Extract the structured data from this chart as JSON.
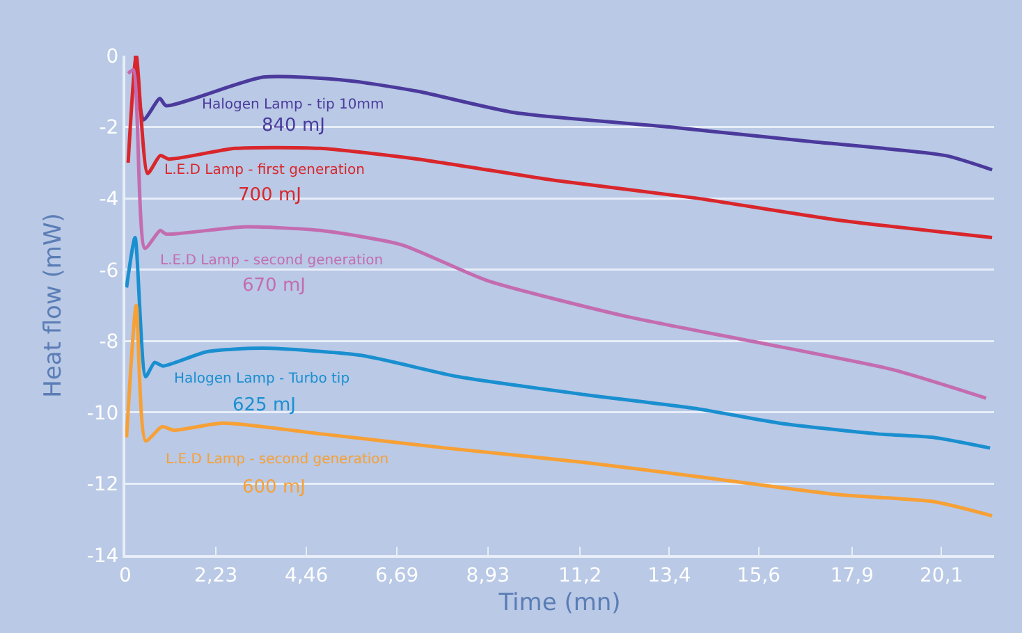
{
  "chart_data": {
    "type": "line",
    "xlabel": "Time (mn)",
    "ylabel": "Heat flow (mW)",
    "xlim": [
      0,
      21.4
    ],
    "ylim": [
      -14,
      0
    ],
    "xticks": [
      0,
      {
        "value": 2.23,
        "label": "2,23"
      },
      {
        "value": 4.46,
        "label": "4,46"
      },
      {
        "value": 6.69,
        "label": "6,69"
      },
      {
        "value": 8.93,
        "label": "8,93"
      },
      {
        "value": 11.2,
        "label": "11,2"
      },
      {
        "value": 13.4,
        "label": "13,4"
      },
      {
        "value": 15.6,
        "label": "15,6"
      },
      {
        "value": 17.9,
        "label": "17,9"
      },
      {
        "value": 20.1,
        "label": "20,1"
      }
    ],
    "yticks": [
      0,
      -2,
      -4,
      -6,
      -8,
      -10,
      -12,
      -14
    ],
    "grid": "y",
    "marker": "none",
    "line_style": "solid",
    "series": [
      {
        "color": "#4b3a9c",
        "x": [
          0.25,
          0.45,
          0.85,
          1.0,
          3.4,
          5.5,
          7.2,
          9.6,
          13.4,
          16.8,
          20.2,
          21.35
        ],
        "values": [
          0,
          -1.8,
          -1.2,
          -1.4,
          -0.6,
          -0.7,
          -1.0,
          -1.6,
          -2.0,
          -2.4,
          -2.8,
          -3.2
        ]
      },
      {
        "color": "#d9262b",
        "x": [
          0.07,
          0.27,
          0.55,
          0.86,
          1.07,
          2.7,
          4.8,
          7.2,
          10.6,
          14.1,
          17.5,
          21.35
        ],
        "values": [
          -3.0,
          0,
          -3.3,
          -2.8,
          -2.9,
          -2.6,
          -2.6,
          -2.9,
          -3.5,
          -4.0,
          -4.6,
          -5.1
        ]
      },
      {
        "color": "#c46cb0",
        "x": [
          0.07,
          0.2,
          0.48,
          0.86,
          1.0,
          2.9,
          4.8,
          6.8,
          8.9,
          12.3,
          15.4,
          18.9,
          21.2
        ],
        "values": [
          -0.5,
          -0.4,
          -5.4,
          -4.9,
          -5.0,
          -4.8,
          -4.9,
          -5.3,
          -6.3,
          -7.3,
          -8.0,
          -8.8,
          -9.6
        ]
      },
      {
        "color": "#1a8fd0",
        "x": [
          0.03,
          0.24,
          0.5,
          0.72,
          0.93,
          2.0,
          3.4,
          5.8,
          8.2,
          11.3,
          14.1,
          16.1,
          18.5,
          19.9,
          21.3
        ],
        "values": [
          -6.5,
          -5.1,
          -9.0,
          -8.6,
          -8.7,
          -8.3,
          -8.2,
          -8.4,
          -9.0,
          -9.5,
          -9.9,
          -10.3,
          -10.6,
          -10.7,
          -11.0
        ]
      },
      {
        "color": "#f7a035",
        "x": [
          0.03,
          0.27,
          0.5,
          0.9,
          1.2,
          2.4,
          4.8,
          7.9,
          11.3,
          14.1,
          17.5,
          19.9,
          21.35
        ],
        "values": [
          -10.7,
          -7.0,
          -10.8,
          -10.4,
          -10.5,
          -10.3,
          -10.6,
          -11.0,
          -11.4,
          -11.8,
          -12.3,
          -12.5,
          -12.9
        ]
      }
    ],
    "annotations": [
      "Halogen Lamp - tip 10mm",
      "840 mJ",
      "L.E.D Lamp - first generation",
      "700 mJ",
      "L.E.D Lamp - second generation",
      "670 mJ",
      "Halogen Lamp - Turbo tip",
      "625 mJ",
      "L.E.D Lamp - second generation",
      "600 mJ"
    ]
  }
}
